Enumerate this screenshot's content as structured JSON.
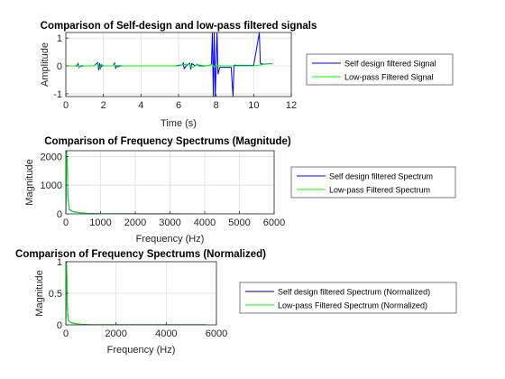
{
  "chart_data": [
    {
      "type": "line",
      "title": "Comparison of Self-design and low-pass filtered signals",
      "xlabel": "Time (s)",
      "ylabel": "Amplitude",
      "xlim": [
        0,
        12
      ],
      "ylim": [
        -1.1,
        1.2
      ],
      "xticks": [
        0,
        2,
        4,
        6,
        8,
        10,
        12
      ],
      "yticks": [
        -1,
        0,
        1
      ],
      "grid": true,
      "legend": "right",
      "series": [
        {
          "name": "Self design filtered Signal",
          "color": "#0000ff",
          "x": [
            0,
            0.3,
            0.6,
            0.65,
            0.7,
            0.8,
            1.0,
            1.5,
            1.7,
            1.75,
            1.8,
            1.85,
            1.9,
            2.2,
            2.5,
            2.6,
            2.65,
            2.7,
            2.8,
            3.0,
            3.5,
            4.0,
            4.5,
            5.0,
            5.5,
            5.8,
            6.2,
            6.25,
            6.3,
            6.4,
            6.6,
            6.65,
            6.7,
            6.9,
            7.0,
            7.1,
            7.5,
            7.6,
            7.75,
            7.8,
            7.85,
            7.9,
            7.95,
            8.0,
            8.05,
            8.1,
            8.2,
            8.5,
            8.8,
            8.9,
            8.95,
            9.0,
            9.1,
            9.5,
            10.0,
            10.3,
            10.35,
            10.4,
            10.45,
            10.5,
            10.8,
            11.0
          ],
          "values": [
            0,
            0,
            0,
            0.08,
            -0.06,
            0,
            0,
            0,
            0.12,
            -0.15,
            0.1,
            -0.08,
            0,
            0,
            0,
            0.1,
            -0.08,
            0,
            0,
            0,
            0,
            0,
            0,
            0,
            0,
            0,
            0.04,
            0.1,
            -0.1,
            0,
            0.1,
            -0.12,
            0.08,
            0,
            0.06,
            0,
            0,
            0.02,
            0.05,
            1.2,
            -1.1,
            1.2,
            -1.1,
            0.05,
            1.2,
            -0.3,
            -0.05,
            -0.05,
            -0.05,
            -1.1,
            0.02,
            0.03,
            0.02,
            0.02,
            0.02,
            1.2,
            0.1,
            0.05,
            0.08,
            0.06,
            0.08,
            0.08
          ]
        },
        {
          "name": "Low-pass Filtered Signal",
          "color": "#00ff00",
          "x": [
            0,
            0.5,
            0.6,
            0.7,
            1.0,
            1.5,
            1.7,
            1.8,
            1.9,
            2.0,
            2.5,
            2.6,
            2.7,
            3.0,
            3.5,
            4.0,
            4.5,
            5.0,
            5.5,
            6.0,
            6.3,
            6.6,
            6.7,
            7.0,
            7.5,
            7.8,
            7.9,
            8.0,
            8.2,
            8.5,
            9.0,
            9.5,
            10.0,
            10.5,
            10.8,
            11.0
          ],
          "values": [
            0,
            0,
            0.05,
            -0.04,
            0,
            0,
            0.08,
            -0.09,
            0.06,
            0,
            0,
            0.06,
            -0.05,
            0,
            0,
            0,
            0,
            0,
            0,
            0,
            0.05,
            0.06,
            -0.06,
            0.04,
            0,
            0.05,
            -0.05,
            0.04,
            0,
            0,
            0,
            0,
            0,
            0.05,
            0.08,
            0.08
          ]
        }
      ]
    },
    {
      "type": "line",
      "title": "Comparison of Frequency Spectrums (Magnitude)",
      "xlabel": "Frequency (Hz)",
      "ylabel": "Magnitude",
      "xlim": [
        0,
        6000
      ],
      "ylim": [
        0,
        2200
      ],
      "xticks": [
        0,
        1000,
        2000,
        3000,
        4000,
        5000,
        6000
      ],
      "yticks": [
        0,
        1000,
        2000
      ],
      "grid": true,
      "legend": "right",
      "series": [
        {
          "name": "Self design filtered Spectrum",
          "color": "#0000ff",
          "x": [
            0,
            20,
            40,
            60,
            100,
            200,
            300,
            400,
            500,
            600,
            800,
            1000,
            2000,
            3000,
            4000,
            5000,
            5600
          ],
          "values": [
            0,
            2200,
            1800,
            600,
            150,
            80,
            60,
            40,
            30,
            20,
            10,
            5,
            3,
            3,
            2,
            2,
            2
          ]
        },
        {
          "name": "Low-pass Filtered Spectrum",
          "color": "#00ff00",
          "x": [
            0,
            20,
            40,
            60,
            100,
            200,
            300,
            400,
            500,
            600,
            800,
            1000,
            2000,
            3000,
            4000,
            5000,
            5600
          ],
          "values": [
            0,
            2150,
            1700,
            550,
            140,
            70,
            50,
            35,
            25,
            15,
            8,
            4,
            2,
            2,
            1,
            1,
            1
          ]
        }
      ]
    },
    {
      "type": "line",
      "title": "Comparison of Frequency Spectrums (Normalized)",
      "xlabel": "Frequency (Hz)",
      "ylabel": "Magnitude",
      "xlim": [
        0,
        6000
      ],
      "ylim": [
        0,
        1
      ],
      "xticks": [
        0,
        2000,
        4000,
        6000
      ],
      "yticks": [
        0,
        0.5,
        1
      ],
      "grid": true,
      "legend": "right",
      "series": [
        {
          "name": "Self design filtered Spectrum (Normalized)",
          "color": "#000080",
          "x": [
            0,
            20,
            40,
            60,
            100,
            200,
            300,
            400,
            500,
            600,
            800,
            1000,
            2000,
            3000,
            4000,
            5000,
            5600
          ],
          "values": [
            0,
            1,
            0.82,
            0.27,
            0.07,
            0.036,
            0.027,
            0.018,
            0.014,
            0.009,
            0.005,
            0.002,
            0.001,
            0.001,
            0.001,
            0.001,
            0.001
          ]
        },
        {
          "name": "Low-pass Filtered Spectrum (Normalized)",
          "color": "#00ff00",
          "x": [
            0,
            20,
            40,
            60,
            100,
            200,
            300,
            400,
            500,
            600,
            800,
            1000,
            2000,
            3000,
            4000,
            5000,
            5600
          ],
          "values": [
            0,
            0.98,
            0.79,
            0.25,
            0.065,
            0.033,
            0.023,
            0.016,
            0.012,
            0.007,
            0.004,
            0.002,
            0.001,
            0.001,
            0.001,
            0.001,
            0.001
          ]
        }
      ]
    }
  ]
}
